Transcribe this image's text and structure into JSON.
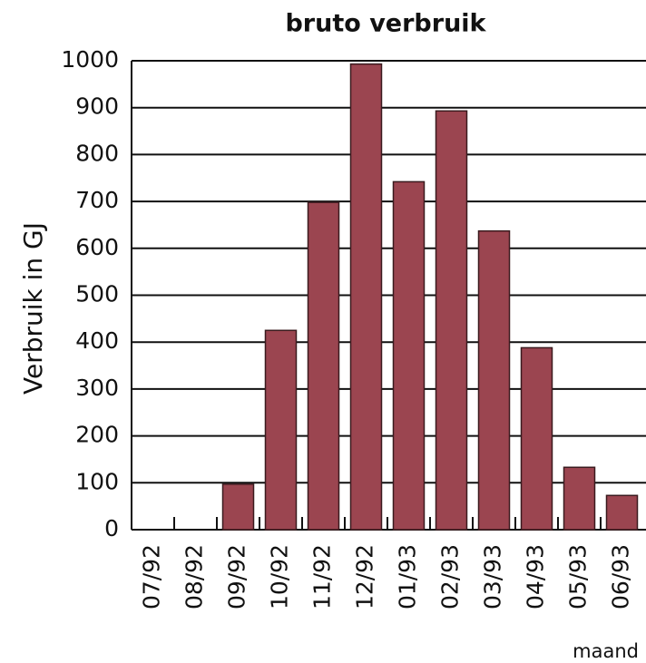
{
  "chart_data": {
    "type": "bar",
    "title": "bruto verbruik",
    "y_label": "Verbruik in GJ",
    "x_label": "maand",
    "categories": [
      "07/92",
      "08/92",
      "09/92",
      "10/92",
      "11/92",
      "12/92",
      "01/93",
      "02/93",
      "03/93",
      "04/93",
      "05/93",
      "06/93"
    ],
    "values": [
      0,
      0,
      97,
      425,
      698,
      993,
      742,
      893,
      637,
      388,
      133,
      73
    ],
    "color": "#9b4550",
    "ylim": [
      0,
      1000
    ],
    "yticks": [
      0,
      100,
      200,
      300,
      400,
      500,
      600,
      700,
      800,
      900,
      1000
    ],
    "grid": true
  }
}
